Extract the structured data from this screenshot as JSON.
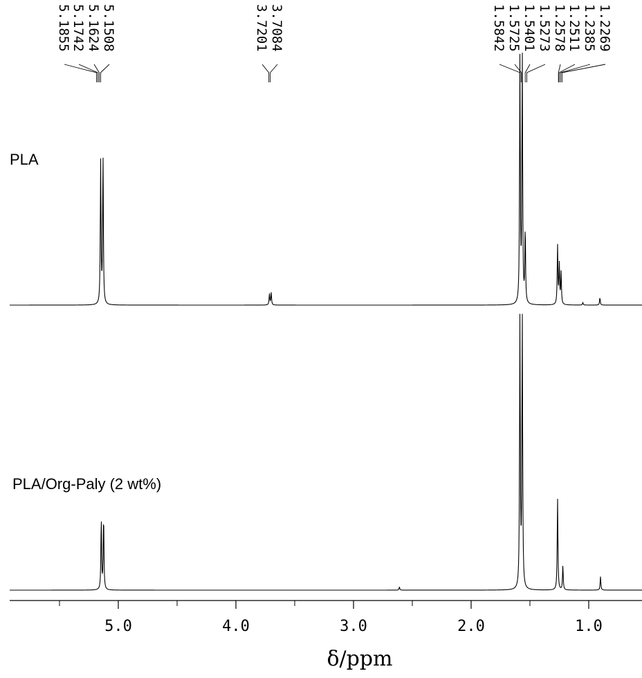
{
  "chart_data": {
    "type": "line",
    "xlabel": "δ/ppm",
    "xlim": [
      5.95,
      0.6
    ],
    "x_ticks": [
      "5.0",
      "4.0",
      "3.0",
      "2.0",
      "1.0"
    ],
    "x_tick_values": [
      5.0,
      4.0,
      3.0,
      2.0,
      1.0
    ],
    "peak_labels": [
      "5.1855",
      "5.1742",
      "5.1624",
      "5.1508",
      "3.7201",
      "3.7084",
      "1.5842",
      "1.5725",
      "1.5401",
      "1.5273",
      "1.2578",
      "1.2511",
      "1.2385",
      "1.2269"
    ],
    "peak_label_values": [
      5.1855,
      5.1742,
      5.1624,
      5.1508,
      3.7201,
      3.7084,
      1.5842,
      1.5725,
      1.5401,
      1.5273,
      1.2578,
      1.2511,
      1.2385,
      1.2269
    ],
    "series": [
      {
        "name": "PLA",
        "peaks": [
          {
            "ppm": 5.15,
            "height": 0.58
          },
          {
            "ppm": 5.13,
            "height": 0.6
          },
          {
            "ppm": 3.715,
            "height": 0.045
          },
          {
            "ppm": 3.7,
            "height": 0.05
          },
          {
            "ppm": 1.585,
            "height": 1.0
          },
          {
            "ppm": 1.565,
            "height": 1.0
          },
          {
            "ppm": 1.54,
            "height": 0.3
          },
          {
            "ppm": 1.265,
            "height": 0.24
          },
          {
            "ppm": 1.25,
            "height": 0.16
          },
          {
            "ppm": 1.235,
            "height": 0.13
          },
          {
            "ppm": 1.05,
            "height": 0.01
          },
          {
            "ppm": 0.905,
            "height": 0.03
          }
        ]
      },
      {
        "name": "PLA/Org-Paly (2 wt%)",
        "peaks": [
          {
            "ppm": 5.145,
            "height": 0.26
          },
          {
            "ppm": 5.125,
            "height": 0.27
          },
          {
            "ppm": 2.61,
            "height": 0.012
          },
          {
            "ppm": 1.585,
            "height": 1.0
          },
          {
            "ppm": 1.565,
            "height": 1.0
          },
          {
            "ppm": 1.265,
            "height": 0.34
          },
          {
            "ppm": 1.22,
            "height": 0.09
          },
          {
            "ppm": 0.9,
            "height": 0.05
          }
        ]
      }
    ]
  }
}
